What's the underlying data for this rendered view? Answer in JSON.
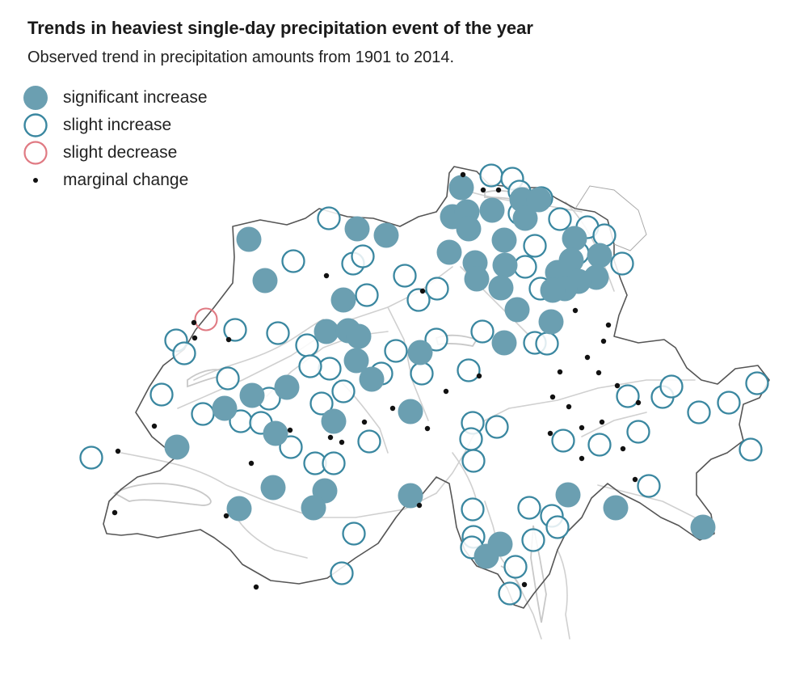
{
  "header": {
    "title": "Trends in heaviest single-day precipitation event of the year",
    "subtitle": "Observed trend in precipitation amounts from 1901 to 2014."
  },
  "legend": {
    "items": [
      {
        "key": "sig",
        "label": "significant increase"
      },
      {
        "key": "inc",
        "label": "slight increase"
      },
      {
        "key": "dec",
        "label": "slight decrease"
      },
      {
        "key": "mar",
        "label": "marginal change"
      }
    ]
  },
  "colors": {
    "significant_fill": "#6b9fb1",
    "increase_stroke": "#3a87a0",
    "decrease_stroke": "#e07a83",
    "marginal_fill": "#111111",
    "border": "#555555",
    "rivers": "#d0d0d0"
  },
  "map_data": {
    "region": "Switzerland",
    "stations": {
      "significant": [
        [
          308,
          296
        ],
        [
          328,
          347
        ],
        [
          442,
          283
        ],
        [
          478,
          291
        ],
        [
          425,
          371
        ],
        [
          404,
          410
        ],
        [
          431,
          409
        ],
        [
          444,
          416
        ],
        [
          441,
          446
        ],
        [
          460,
          469
        ],
        [
          520,
          436
        ],
        [
          355,
          479
        ],
        [
          312,
          489
        ],
        [
          278,
          505
        ],
        [
          341,
          536
        ],
        [
          413,
          521
        ],
        [
          508,
          509
        ],
        [
          219,
          553
        ],
        [
          338,
          603
        ],
        [
          402,
          607
        ],
        [
          388,
          628
        ],
        [
          296,
          629
        ],
        [
          508,
          613
        ],
        [
          571,
          232
        ],
        [
          560,
          268
        ],
        [
          578,
          262
        ],
        [
          580,
          283
        ],
        [
          609,
          260
        ],
        [
          646,
          247
        ],
        [
          650,
          270
        ],
        [
          624,
          297
        ],
        [
          556,
          312
        ],
        [
          588,
          325
        ],
        [
          625,
          328
        ],
        [
          590,
          345
        ],
        [
          620,
          356
        ],
        [
          640,
          383
        ],
        [
          682,
          398
        ],
        [
          624,
          424
        ],
        [
          667,
          247
        ],
        [
          711,
          295
        ],
        [
          742,
          316
        ],
        [
          738,
          343
        ],
        [
          707,
          322
        ],
        [
          690,
          337
        ],
        [
          716,
          348
        ],
        [
          699,
          357
        ],
        [
          684,
          359
        ],
        [
          703,
          612
        ],
        [
          762,
          628
        ],
        [
          870,
          652
        ],
        [
          619,
          673
        ],
        [
          602,
          688
        ]
      ],
      "increase": [
        [
          608,
          217
        ],
        [
          634,
          221
        ],
        [
          643,
          237
        ],
        [
          670,
          245
        ],
        [
          693,
          271
        ],
        [
          727,
          281
        ],
        [
          748,
          291
        ],
        [
          662,
          304
        ],
        [
          643,
          264
        ],
        [
          715,
          313
        ],
        [
          770,
          326
        ],
        [
          650,
          330
        ],
        [
          407,
          270
        ],
        [
          363,
          323
        ],
        [
          437,
          326
        ],
        [
          449,
          317
        ],
        [
          501,
          341
        ],
        [
          541,
          357
        ],
        [
          518,
          371
        ],
        [
          454,
          365
        ],
        [
          291,
          408
        ],
        [
          344,
          412
        ],
        [
          218,
          421
        ],
        [
          228,
          437
        ],
        [
          380,
          427
        ],
        [
          408,
          456
        ],
        [
          384,
          453
        ],
        [
          425,
          484
        ],
        [
          472,
          462
        ],
        [
          490,
          434
        ],
        [
          522,
          462
        ],
        [
          540,
          420
        ],
        [
          597,
          410
        ],
        [
          662,
          424
        ],
        [
          677,
          425
        ],
        [
          669,
          357
        ],
        [
          580,
          458
        ],
        [
          282,
          468
        ],
        [
          200,
          488
        ],
        [
          251,
          512
        ],
        [
          298,
          521
        ],
        [
          323,
          523
        ],
        [
          333,
          493
        ],
        [
          398,
          499
        ],
        [
          360,
          553
        ],
        [
          390,
          573
        ],
        [
          413,
          573
        ],
        [
          457,
          546
        ],
        [
          585,
          523
        ],
        [
          615,
          528
        ],
        [
          583,
          543
        ],
        [
          586,
          570
        ],
        [
          697,
          545
        ],
        [
          742,
          550
        ],
        [
          790,
          534
        ],
        [
          777,
          490
        ],
        [
          820,
          491
        ],
        [
          831,
          478
        ],
        [
          865,
          510
        ],
        [
          902,
          498
        ],
        [
          937,
          474
        ],
        [
          929,
          556
        ],
        [
          803,
          601
        ],
        [
          585,
          630
        ],
        [
          655,
          628
        ],
        [
          683,
          638
        ],
        [
          690,
          652
        ],
        [
          660,
          668
        ],
        [
          586,
          664
        ],
        [
          584,
          677
        ],
        [
          638,
          701
        ],
        [
          631,
          734
        ],
        [
          438,
          660
        ],
        [
          423,
          709
        ],
        [
          113,
          566
        ]
      ],
      "decrease": [
        [
          255,
          395
        ]
      ],
      "marginal": [
        [
          573,
          216
        ],
        [
          598,
          235
        ],
        [
          617,
          235
        ],
        [
          404,
          341
        ],
        [
          523,
          360
        ],
        [
          240,
          399
        ],
        [
          241,
          418
        ],
        [
          283,
          420
        ],
        [
          712,
          384
        ],
        [
          753,
          402
        ],
        [
          747,
          422
        ],
        [
          727,
          442
        ],
        [
          693,
          460
        ],
        [
          741,
          461
        ],
        [
          764,
          477
        ],
        [
          790,
          498
        ],
        [
          593,
          465
        ],
        [
          552,
          484
        ],
        [
          684,
          491
        ],
        [
          704,
          503
        ],
        [
          486,
          505
        ],
        [
          451,
          522
        ],
        [
          529,
          530
        ],
        [
          359,
          532
        ],
        [
          191,
          527
        ],
        [
          681,
          536
        ],
        [
          720,
          529
        ],
        [
          745,
          522
        ],
        [
          771,
          555
        ],
        [
          720,
          567
        ],
        [
          409,
          541
        ],
        [
          423,
          547
        ],
        [
          146,
          558
        ],
        [
          311,
          573
        ],
        [
          786,
          593
        ],
        [
          519,
          625
        ],
        [
          280,
          638
        ],
        [
          142,
          634
        ],
        [
          649,
          723
        ],
        [
          317,
          726
        ]
      ]
    }
  }
}
